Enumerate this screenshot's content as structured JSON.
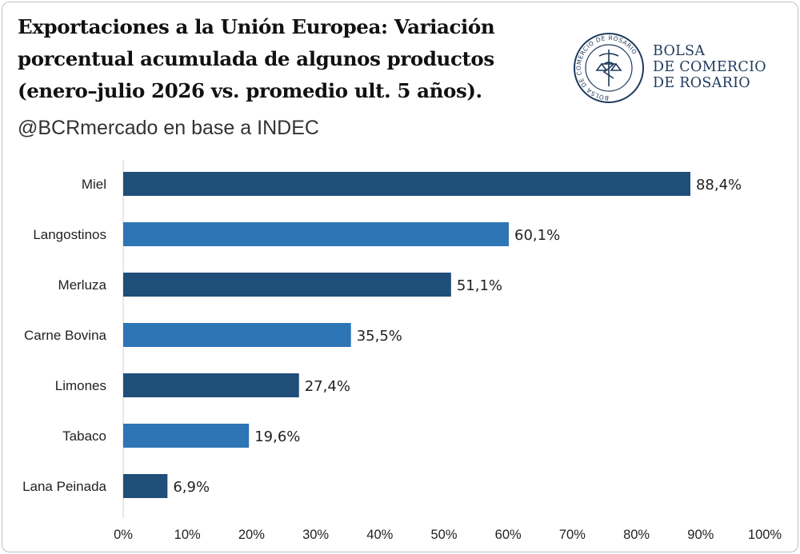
{
  "header": {
    "title_lines": [
      "Exportaciones a la Unión Europea: Variación",
      "porcentual acumulada de algunos productos",
      "(enero–julio 2026 vs. promedio ult. 5 años)."
    ],
    "subtitle": "@BCRmercado en base a INDEC"
  },
  "brand": {
    "line1": "BOLSA",
    "line2": "DE COMERCIO",
    "line3": "DE ROSARIO",
    "seal_text": "BOLSA DE COMERCIO DE ROSARIO",
    "color": "#1f3a5c"
  },
  "chart_data": {
    "type": "bar",
    "orientation": "horizontal",
    "categories": [
      "Miel",
      "Langostinos",
      "Merluza",
      "Carne Bovina",
      "Limones",
      "Tabaco",
      "Lana Peinada"
    ],
    "values": [
      88.4,
      60.1,
      51.1,
      35.5,
      27.4,
      19.6,
      6.9
    ],
    "value_labels": [
      "88,4%",
      "60,1%",
      "51,1%",
      "35,5%",
      "27,4%",
      "19,6%",
      "6,9%"
    ],
    "xlim": [
      0,
      100
    ],
    "x_ticks": [
      "0%",
      "10%",
      "20%",
      "30%",
      "40%",
      "50%",
      "60%",
      "70%",
      "80%",
      "90%",
      "100%"
    ],
    "colors": [
      "#1f4e79",
      "#2e75b6"
    ],
    "grid": false
  }
}
